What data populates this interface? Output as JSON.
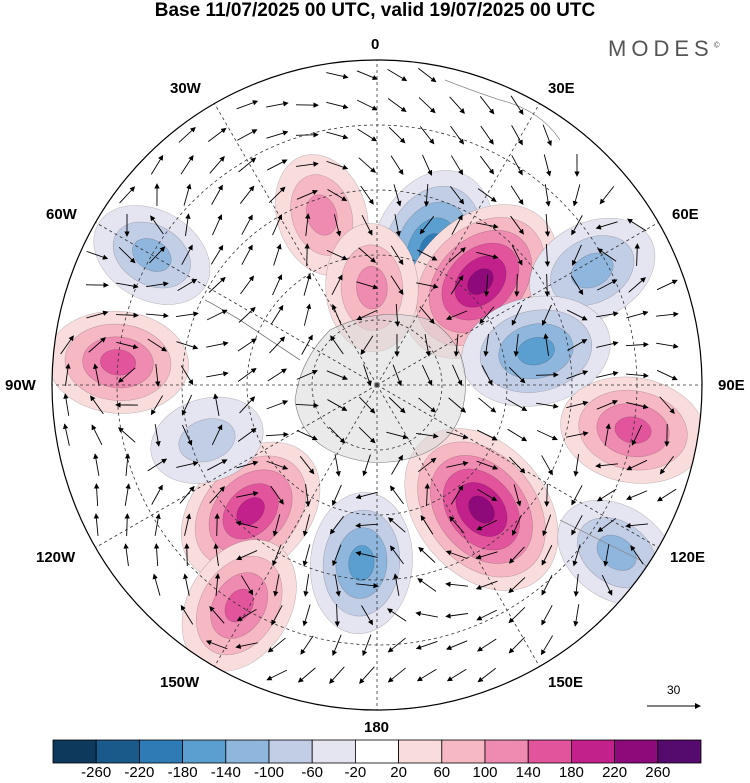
{
  "title": "Base 11/07/2025 00 UTC, valid 19/07/2025 00 UTC",
  "brand": "MODES",
  "brand_mark": "©",
  "meridian_labels": {
    "0": "0",
    "30E": "30E",
    "60E": "60E",
    "90E": "90E",
    "120E": "120E",
    "150E": "150E",
    "180": "180",
    "150W": "150W",
    "120W": "120W",
    "90W": "90W",
    "60W": "60W",
    "30W": "30W"
  },
  "reference_vector": "30",
  "colorbar": {
    "ticks": [
      "-260",
      "-220",
      "-180",
      "-140",
      "-100",
      "-60",
      "-20",
      "20",
      "60",
      "100",
      "140",
      "180",
      "220",
      "260"
    ],
    "colors": [
      "#0d3a5c",
      "#1a5a8a",
      "#2f7bb5",
      "#5a9fcf",
      "#8fb6dc",
      "#c2cde6",
      "#e5e4f1",
      "#ffffff",
      "#f9dcdc",
      "#f6b8c3",
      "#ef8ab0",
      "#e2559d",
      "#c2208a",
      "#8e0a7a",
      "#550a6e"
    ]
  },
  "chart_data": {
    "type": "heatmap",
    "title": "Base 11/07/2025 00 UTC, valid 19/07/2025 00 UTC",
    "projection": "south-polar-stereographic",
    "field_range": [
      -260,
      260
    ],
    "anomalies": [
      {
        "lon": 22,
        "colat": 45,
        "value": -190
      },
      {
        "lon": 45,
        "colat": 45,
        "value": 220
      },
      {
        "lon": 62,
        "colat": 75,
        "value": -120
      },
      {
        "lon": 78,
        "colat": 50,
        "value": -160
      },
      {
        "lon": 100,
        "colat": 80,
        "value": 150
      },
      {
        "lon": 140,
        "colat": 50,
        "value": 230
      },
      {
        "lon": 125,
        "colat": 90,
        "value": -110
      },
      {
        "lon": -175,
        "colat": 55,
        "value": -140
      },
      {
        "lon": -135,
        "colat": 55,
        "value": 180
      },
      {
        "lon": -148,
        "colat": 80,
        "value": 140
      },
      {
        "lon": -85,
        "colat": 80,
        "value": 140
      },
      {
        "lon": -60,
        "colat": 80,
        "value": -100
      },
      {
        "lon": -18,
        "colat": 55,
        "value": 100
      },
      {
        "lon": -3,
        "colat": 30,
        "value": 110
      },
      {
        "lon": -108,
        "colat": 55,
        "value": -80
      }
    ]
  }
}
